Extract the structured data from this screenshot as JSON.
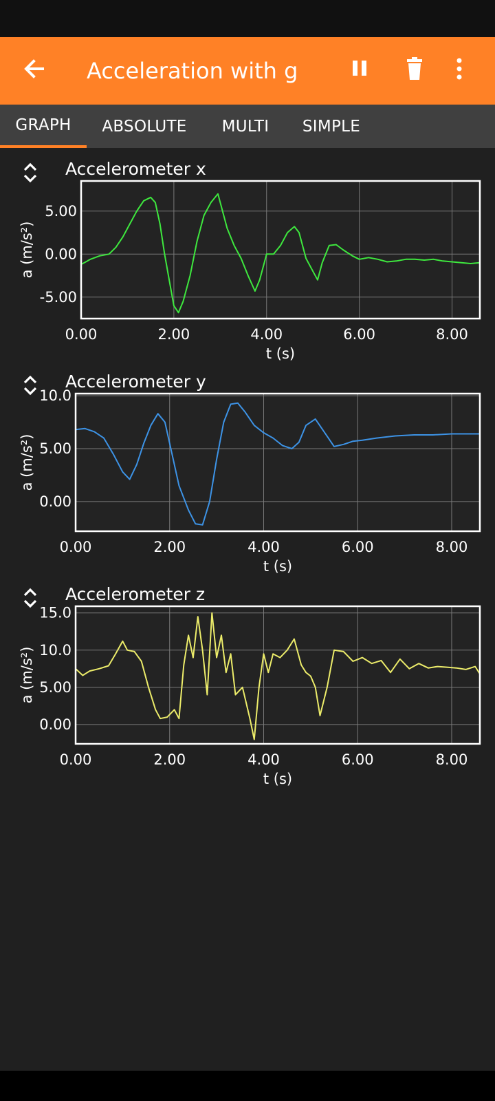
{
  "app_bar": {
    "title": "Acceleration with g",
    "background": "#ff8126",
    "icons": [
      "back-arrow-icon",
      "pause-icon",
      "trash-icon",
      "more-vert-icon"
    ]
  },
  "tabs": [
    {
      "label": "GRAPH",
      "active": true
    },
    {
      "label": "ABSOLUTE",
      "active": false
    },
    {
      "label": "MULTI",
      "active": false
    },
    {
      "label": "SIMPLE",
      "active": false
    }
  ],
  "graphs": [
    {
      "title": "Accelerometer x",
      "xlabel": "t (s)",
      "ylabel": "a (m/s²)"
    },
    {
      "title": "Accelerometer y",
      "xlabel": "t (s)",
      "ylabel": "a (m/s²)"
    },
    {
      "title": "Accelerometer z",
      "xlabel": "t (s)",
      "ylabel": "a (m/s²)"
    }
  ],
  "chart_data": [
    {
      "type": "line",
      "title": "Accelerometer x",
      "xlabel": "t (s)",
      "ylabel": "a (m/s²)",
      "xlim": [
        0,
        8.6
      ],
      "ylim": [
        -7.5,
        8.5
      ],
      "xticks": [
        "0.00",
        "2.00",
        "4.00",
        "6.00",
        "8.00"
      ],
      "yticks": [
        "-5.00",
        "0.00",
        "5.00"
      ],
      "ytick_values": [
        -5,
        0,
        5
      ],
      "grid": true,
      "color": "#3ee83e",
      "x": [
        0,
        0.2,
        0.4,
        0.6,
        0.75,
        0.9,
        1.05,
        1.2,
        1.35,
        1.5,
        1.6,
        1.7,
        1.8,
        1.9,
        2.0,
        2.1,
        2.2,
        2.35,
        2.5,
        2.65,
        2.8,
        2.95,
        3.05,
        3.15,
        3.3,
        3.45,
        3.6,
        3.75,
        3.85,
        4.0,
        4.15,
        4.3,
        4.45,
        4.6,
        4.7,
        4.85,
        5.0,
        5.1,
        5.2,
        5.35,
        5.5,
        5.65,
        5.85,
        6.0,
        6.2,
        6.4,
        6.6,
        6.8,
        7.0,
        7.2,
        7.4,
        7.6,
        7.8,
        8.0,
        8.2,
        8.4,
        8.6
      ],
      "y": [
        -1.2,
        -0.6,
        -0.2,
        0.0,
        0.8,
        2.0,
        3.5,
        5.0,
        6.2,
        6.6,
        6.0,
        3.5,
        0.0,
        -3.0,
        -6.0,
        -6.8,
        -5.5,
        -2.5,
        1.5,
        4.5,
        6.0,
        7.0,
        5.0,
        3.0,
        1.0,
        -0.5,
        -2.5,
        -4.3,
        -3.0,
        0.0,
        0.0,
        1.0,
        2.5,
        3.2,
        2.5,
        -0.5,
        -2.0,
        -3.0,
        -1.0,
        1.0,
        1.1,
        0.5,
        -0.2,
        -0.6,
        -0.4,
        -0.6,
        -0.9,
        -0.8,
        -0.6,
        -0.6,
        -0.7,
        -0.6,
        -0.8,
        -0.9,
        -1.0,
        -1.1,
        -1.0
      ]
    },
    {
      "type": "line",
      "title": "Accelerometer y",
      "xlabel": "t (s)",
      "ylabel": "a (m/s²)",
      "xlim": [
        0,
        8.6
      ],
      "ylim": [
        -2.8,
        10.2
      ],
      "xticks": [
        "0.00",
        "2.00",
        "4.00",
        "6.00",
        "8.00"
      ],
      "yticks": [
        "0.00",
        "5.00",
        "10.0"
      ],
      "ytick_values": [
        0,
        5,
        10
      ],
      "grid": true,
      "color": "#3d93e6",
      "x": [
        0,
        0.2,
        0.4,
        0.6,
        0.8,
        1.0,
        1.15,
        1.3,
        1.45,
        1.6,
        1.75,
        1.9,
        2.05,
        2.2,
        2.4,
        2.55,
        2.7,
        2.85,
        3.0,
        3.15,
        3.3,
        3.45,
        3.6,
        3.8,
        4.0,
        4.2,
        4.4,
        4.6,
        4.75,
        4.9,
        5.1,
        5.3,
        5.5,
        5.7,
        5.9,
        6.1,
        6.4,
        6.8,
        7.2,
        7.6,
        8.0,
        8.4,
        8.6
      ],
      "y": [
        6.8,
        6.9,
        6.6,
        6.0,
        4.5,
        2.8,
        2.1,
        3.5,
        5.5,
        7.2,
        8.3,
        7.5,
        4.5,
        1.5,
        -0.8,
        -2.1,
        -2.2,
        0.0,
        4.0,
        7.5,
        9.2,
        9.3,
        8.5,
        7.2,
        6.5,
        6.0,
        5.3,
        5.0,
        5.6,
        7.2,
        7.8,
        6.5,
        5.2,
        5.4,
        5.7,
        5.8,
        6.0,
        6.2,
        6.3,
        6.3,
        6.4,
        6.4,
        6.4
      ]
    },
    {
      "type": "line",
      "title": "Accelerometer z",
      "xlabel": "t (s)",
      "ylabel": "a (m/s²)",
      "xlim": [
        0,
        8.6
      ],
      "ylim": [
        -2.6,
        15.9
      ],
      "xticks": [
        "0.00",
        "2.00",
        "4.00",
        "6.00",
        "8.00"
      ],
      "yticks": [
        "0.00",
        "5.00",
        "10.0",
        "15.0"
      ],
      "ytick_values": [
        0,
        5,
        10,
        15
      ],
      "grid": true,
      "color": "#ecec6a",
      "x": [
        0,
        0.15,
        0.3,
        0.5,
        0.7,
        0.85,
        1.0,
        1.1,
        1.25,
        1.4,
        1.55,
        1.7,
        1.8,
        1.95,
        2.1,
        2.2,
        2.3,
        2.4,
        2.5,
        2.6,
        2.7,
        2.8,
        2.9,
        3.0,
        3.1,
        3.2,
        3.3,
        3.4,
        3.55,
        3.7,
        3.8,
        3.9,
        4.0,
        4.1,
        4.2,
        4.35,
        4.5,
        4.65,
        4.8,
        4.9,
        5.0,
        5.1,
        5.2,
        5.35,
        5.5,
        5.7,
        5.9,
        6.1,
        6.3,
        6.5,
        6.7,
        6.9,
        7.1,
        7.3,
        7.5,
        7.7,
        7.9,
        8.1,
        8.3,
        8.5,
        8.6
      ],
      "y": [
        7.5,
        6.6,
        7.2,
        7.5,
        7.9,
        9.5,
        11.2,
        10.0,
        9.8,
        8.5,
        5.0,
        2.0,
        0.8,
        1.0,
        2.0,
        0.8,
        8.0,
        12.0,
        9.0,
        14.5,
        10.0,
        4.0,
        15.0,
        9.0,
        12.0,
        7.0,
        9.5,
        4.0,
        5.0,
        1.0,
        -2.0,
        5.0,
        9.5,
        7.0,
        9.5,
        9.0,
        10.0,
        11.5,
        8.0,
        7.0,
        6.5,
        5.0,
        1.2,
        5.0,
        10.0,
        9.8,
        8.5,
        9.0,
        8.2,
        8.6,
        7.0,
        8.8,
        7.5,
        8.2,
        7.6,
        7.8,
        7.7,
        7.6,
        7.4,
        7.8,
        6.8
      ]
    }
  ]
}
